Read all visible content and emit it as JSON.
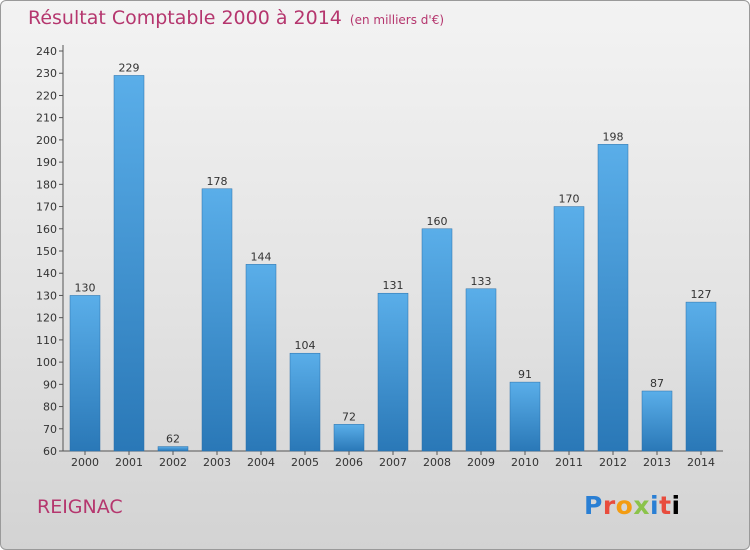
{
  "header": {
    "title": "Résultat Comptable 2000 à 2014",
    "subtitle": "(en milliers d'€)"
  },
  "footer": {
    "town": "REIGNAC",
    "logo_letters": [
      "P",
      "r",
      "o",
      "x",
      "i",
      "t",
      "i"
    ]
  },
  "colors": {
    "accent": "#b5366e",
    "bar_top": "#5aaee9",
    "bar_bottom": "#2a78b7"
  },
  "chart_data": {
    "type": "bar",
    "title": "Résultat Comptable 2000 à 2014",
    "subtitle": "(en milliers d'€)",
    "xlabel": "",
    "ylabel": "",
    "categories": [
      "2000",
      "2001",
      "2002",
      "2003",
      "2004",
      "2005",
      "2006",
      "2007",
      "2008",
      "2009",
      "2010",
      "2011",
      "2012",
      "2013",
      "2014"
    ],
    "values": [
      130,
      229,
      62,
      178,
      144,
      104,
      72,
      131,
      160,
      133,
      91,
      170,
      198,
      87,
      127
    ],
    "ylim": [
      60,
      240
    ],
    "yticks": [
      60,
      70,
      80,
      90,
      100,
      110,
      120,
      130,
      140,
      150,
      160,
      170,
      180,
      190,
      200,
      210,
      220,
      230,
      240
    ],
    "grid": false,
    "legend": "none"
  }
}
